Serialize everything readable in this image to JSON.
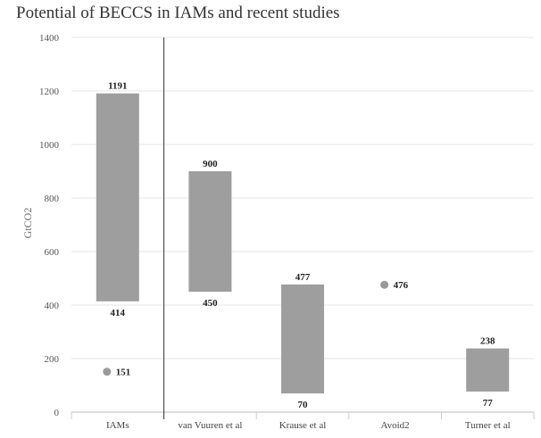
{
  "chart_data": {
    "type": "floating-bar",
    "title": "Potential of BECCS in IAMs and recent studies",
    "xlabel": "",
    "ylabel": "GtCO2",
    "ylim": [
      0,
      1400
    ],
    "yticks": [
      0,
      200,
      400,
      600,
      800,
      1000,
      1200,
      1400
    ],
    "grid": true,
    "categories": [
      "IAMs",
      "van Vuuren et al",
      "Krause et al",
      "Avoid2",
      "Turner et al"
    ],
    "ranges": [
      {
        "category": "IAMs",
        "low": 414,
        "high": 1191,
        "low_label": "414",
        "high_label": "1191"
      },
      {
        "category": "van Vuuren et al",
        "low": 450,
        "high": 900,
        "low_label": "450",
        "high_label": "900"
      },
      {
        "category": "Krause et al",
        "low": 70,
        "high": 477,
        "low_label": "70",
        "high_label": "477"
      },
      {
        "category": "Turner et al",
        "low": 77,
        "high": 238,
        "low_label": "77",
        "high_label": "238"
      }
    ],
    "points": [
      {
        "category": "IAMs",
        "value": 151,
        "label": "151"
      },
      {
        "category": "Avoid2",
        "value": 476,
        "label": "476"
      }
    ],
    "colors": {
      "bar": "#9e9e9e",
      "point": "#999999",
      "grid": "#e6e6e6",
      "divider": "#333333"
    }
  }
}
